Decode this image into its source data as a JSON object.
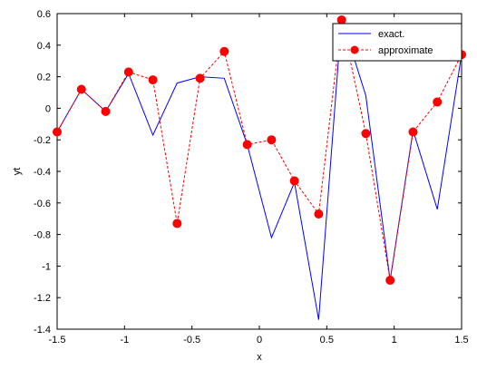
{
  "chart_data": {
    "type": "line",
    "xlabel": "x",
    "ylabel": "yt",
    "xlim": [
      -1.5,
      1.5
    ],
    "ylim": [
      -1.4,
      0.6
    ],
    "xticks": [
      -1.5,
      -1,
      -0.5,
      0,
      0.5,
      1,
      1.5
    ],
    "xtick_labels": [
      "-1.5",
      "-1",
      "-0.5",
      "0",
      "0.5",
      "1",
      "1.5"
    ],
    "yticks": [
      -1.4,
      -1.2,
      -1,
      -0.8,
      -0.6,
      -0.4,
      -0.2,
      0,
      0.2,
      0.4,
      0.6
    ],
    "ytick_labels": [
      "-1.4",
      "-1.2",
      "-1",
      "-0.8",
      "-0.6",
      "-0.4",
      "-0.2",
      "0",
      "0.2",
      "0.4",
      "0.6"
    ],
    "grid": false,
    "legend_position": "top-right",
    "series": [
      {
        "name": "exact.",
        "color": "#0000ff",
        "style": "solid",
        "marker": "none",
        "x": [
          -1.5,
          -1.32,
          -1.14,
          -0.97,
          -0.79,
          -0.61,
          -0.44,
          -0.26,
          -0.09,
          0.09,
          0.26,
          0.44,
          0.61,
          0.79,
          0.97,
          1.14,
          1.32,
          1.5
        ],
        "y": [
          -0.15,
          0.12,
          -0.02,
          0.22,
          -0.17,
          0.16,
          0.2,
          0.19,
          -0.23,
          -0.82,
          -0.47,
          -1.34,
          0.57,
          0.08,
          -1.09,
          -0.14,
          -0.64,
          0.34
        ]
      },
      {
        "name": "approximate",
        "color": "#ff0000",
        "style": "dashed",
        "marker": "circle",
        "x": [
          -1.5,
          -1.32,
          -1.14,
          -0.97,
          -0.79,
          -0.61,
          -0.44,
          -0.26,
          -0.09,
          0.09,
          0.26,
          0.44,
          0.61,
          0.79,
          0.97,
          1.14,
          1.32,
          1.5
        ],
        "y": [
          -0.15,
          0.12,
          -0.02,
          0.23,
          0.18,
          -0.73,
          0.19,
          0.36,
          -0.23,
          -0.2,
          -0.46,
          -0.67,
          0.56,
          -0.16,
          -1.09,
          -0.15,
          0.04,
          0.34
        ]
      }
    ]
  }
}
